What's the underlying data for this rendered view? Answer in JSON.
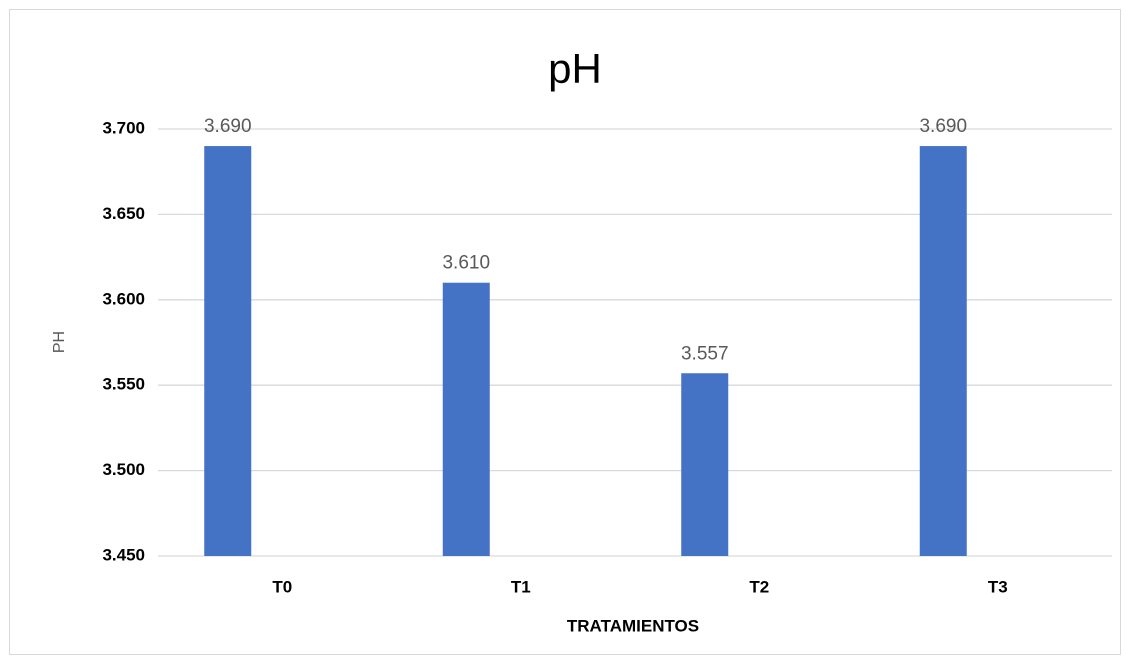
{
  "chart_data": {
    "type": "bar",
    "title": "pH",
    "x_label": "TRATAMIENTOS",
    "y_label": "PH",
    "categories": [
      "T0",
      "T1",
      "T2",
      "T3"
    ],
    "values": [
      3.69,
      3.61,
      3.557,
      3.69
    ],
    "value_labels": [
      "3.690",
      "3.610",
      "3.557",
      "3.690"
    ],
    "color": "#4472c4",
    "ylim": [
      3.45,
      3.7
    ],
    "yticks": [
      {
        "value": 3.45,
        "label": "3.450"
      },
      {
        "value": 3.5,
        "label": "3.500"
      },
      {
        "value": 3.55,
        "label": "3.550"
      },
      {
        "value": 3.6,
        "label": "3.600"
      },
      {
        "value": 3.65,
        "label": "3.650"
      },
      {
        "value": 3.7,
        "label": "3.700"
      }
    ],
    "grid": true
  }
}
